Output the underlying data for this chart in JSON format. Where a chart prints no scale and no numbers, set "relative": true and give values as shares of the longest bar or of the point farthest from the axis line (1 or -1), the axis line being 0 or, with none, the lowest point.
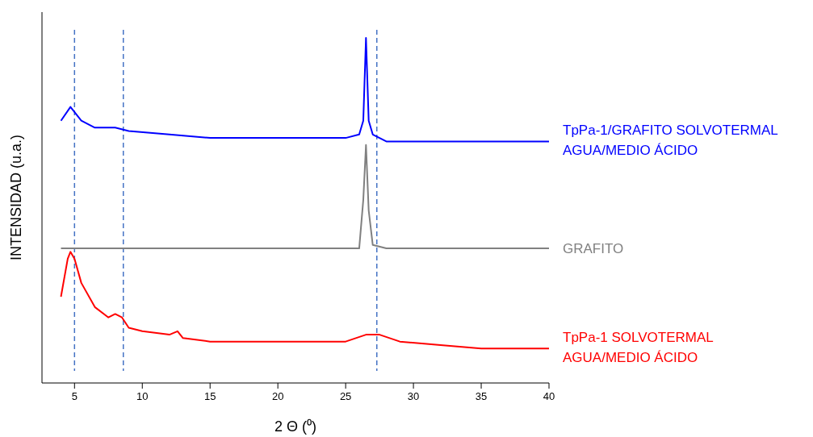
{
  "chart_data": {
    "type": "line",
    "relative": true,
    "xlabel": "2 Θ (⁰)",
    "ylabel": "INTENSIDAD (u.a.)",
    "xlim": [
      2.6,
      40
    ],
    "xticks": [
      5,
      10,
      15,
      20,
      25,
      30,
      35,
      40
    ],
    "grid": false,
    "marker": "none",
    "line_style": "solid",
    "series": [
      {
        "name": "TpPa-1/GRAFITO SOLVOTERMAL\nAGUA/MEDIO ÁCIDO",
        "color": "#0000ff",
        "x": [
          4,
          4.7,
          5.5,
          6.5,
          8,
          9,
          12,
          15,
          20,
          25,
          26,
          26.3,
          26.5,
          26.7,
          27,
          28,
          35,
          40
        ],
        "values": [
          0.76,
          0.8,
          0.76,
          0.74,
          0.74,
          0.73,
          0.72,
          0.71,
          0.71,
          0.71,
          0.72,
          0.76,
          1,
          0.76,
          0.72,
          0.7,
          0.7,
          0.7
        ]
      },
      {
        "name": "GRAFITO",
        "color": "#808080",
        "x": [
          4,
          26,
          26.3,
          26.5,
          26.7,
          27,
          28,
          40
        ],
        "values": [
          0.39,
          0.39,
          0.53,
          0.69,
          0.5,
          0.4,
          0.39,
          0.39
        ]
      },
      {
        "name": "TpPa-1 SOLVOTERMAL\nAGUA/MEDIO ÁCIDO",
        "color": "#ff0000",
        "x": [
          4,
          4.5,
          4.7,
          5,
          5.5,
          6.5,
          7.5,
          8,
          8.5,
          9,
          10,
          12,
          12.6,
          13,
          15,
          20,
          25,
          26.5,
          27,
          27.5,
          29,
          32,
          35,
          40
        ],
        "values": [
          0.25,
          0.36,
          0.38,
          0.36,
          0.29,
          0.22,
          0.19,
          0.2,
          0.19,
          0.16,
          0.15,
          0.14,
          0.15,
          0.13,
          0.12,
          0.12,
          0.12,
          0.14,
          0.14,
          0.14,
          0.12,
          0.11,
          0.1,
          0.1
        ]
      }
    ],
    "ref_lines": [
      {
        "axis": "x",
        "value": 5.0,
        "color": "#4472c4",
        "line_style": "dashed"
      },
      {
        "axis": "x",
        "value": 8.6,
        "color": "#4472c4",
        "line_style": "dashed"
      },
      {
        "axis": "x",
        "value": 27.3,
        "color": "#4472c4",
        "line_style": "dashed"
      }
    ]
  }
}
